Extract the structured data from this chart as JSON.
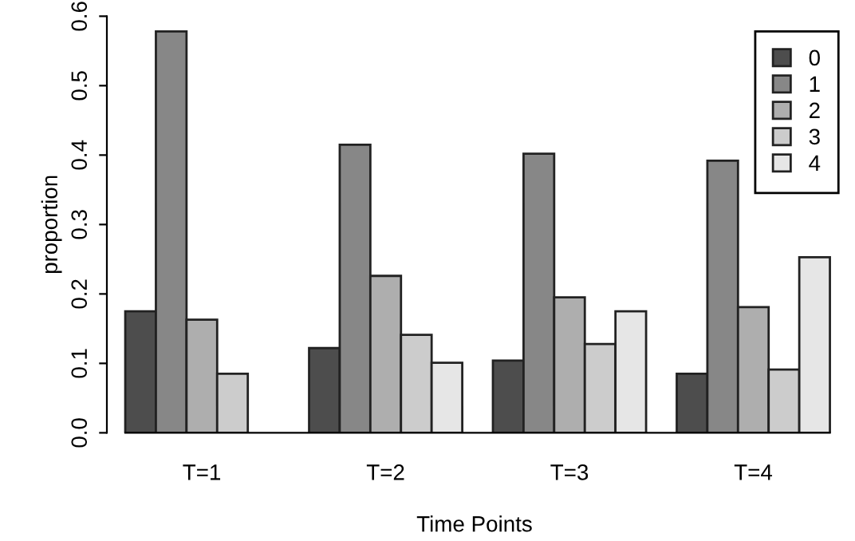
{
  "chart_data": {
    "type": "bar",
    "xlabel": "Time Points",
    "ylabel": "proportion",
    "categories": [
      "T=1",
      "T=2",
      "T=3",
      "T=4"
    ],
    "series": [
      {
        "name": "0",
        "color": "#4d4d4d",
        "values": [
          0.175,
          0.122,
          0.104,
          0.085
        ]
      },
      {
        "name": "1",
        "color": "#878787",
        "values": [
          0.578,
          0.415,
          0.402,
          0.392
        ]
      },
      {
        "name": "2",
        "color": "#aeaeae",
        "values": [
          0.163,
          0.226,
          0.195,
          0.181
        ]
      },
      {
        "name": "3",
        "color": "#cccccc",
        "values": [
          0.085,
          0.141,
          0.128,
          0.091
        ]
      },
      {
        "name": "4",
        "color": "#e6e6e6",
        "values": [
          null,
          0.101,
          0.175,
          0.253
        ]
      }
    ],
    "ylim": [
      0,
      0.6
    ],
    "yticks": [
      {
        "value": 0,
        "label": "0.0"
      },
      0.1,
      0.2,
      0.3,
      0.4,
      0.5,
      0.6
    ],
    "grid": false,
    "legend": "top right"
  }
}
